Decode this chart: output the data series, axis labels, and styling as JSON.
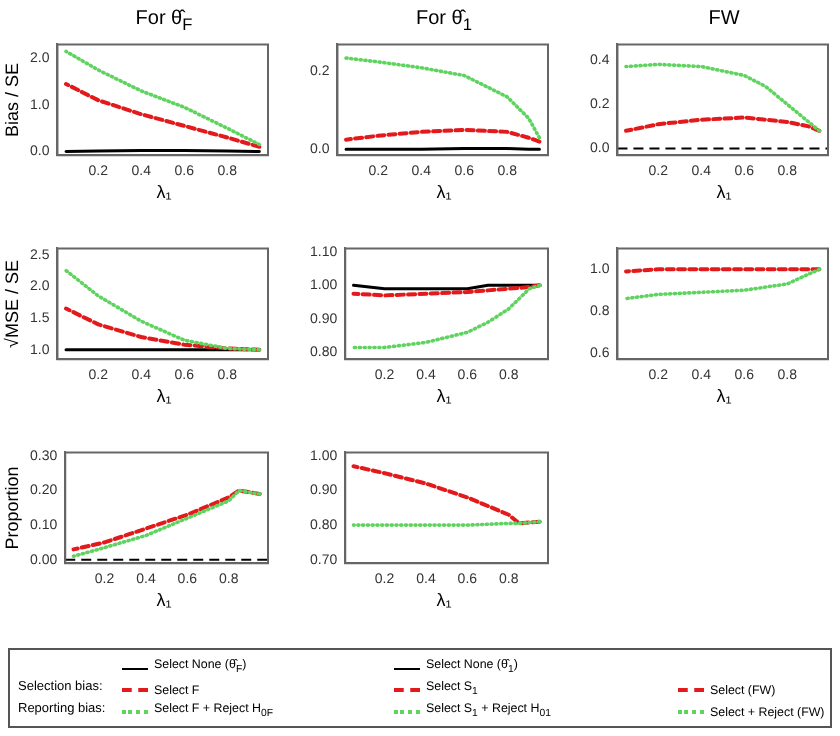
{
  "chart_data": [
    {
      "type": "line",
      "title": "For θ̂$_{F}$",
      "xlabel": "λ₁",
      "ylabel": "Bias / SE",
      "x": [
        0.05,
        0.2,
        0.4,
        0.6,
        0.8,
        0.95
      ],
      "xlim": [
        0.01,
        0.99
      ],
      "xticks": [
        0.2,
        0.4,
        0.6,
        0.8
      ],
      "ylim": [
        -0.08,
        2.3
      ],
      "yticks": [
        {
          "value": 0,
          "label": "0.0"
        },
        {
          "value": 1,
          "label": "1.0"
        },
        {
          "value": 2,
          "label": "2.0"
        }
      ],
      "legend": "bottom",
      "annotations": [
        "Selection bias:",
        "Reporting bias:"
      ],
      "series": [
        {
          "name": "Select None (θ̂$_{F}$)",
          "color": "#000000",
          "line_style": "solid",
          "values": [
            0.0,
            0.01,
            0.02,
            0.02,
            0.01,
            0.0
          ]
        },
        {
          "name": "Select F",
          "color": "#e31a1c",
          "line_style": "dashed",
          "values": [
            1.45,
            1.1,
            0.8,
            0.55,
            0.3,
            0.1
          ]
        },
        {
          "name": "Select F + Reject H$_{0F}$",
          "color": "#5fd35f",
          "line_style": "dotted",
          "values": [
            2.15,
            1.75,
            1.3,
            0.95,
            0.5,
            0.15
          ]
        }
      ]
    },
    {
      "type": "line",
      "title": "For θ̂$_{1}$",
      "xlabel": "λ₁",
      "x": [
        0.05,
        0.2,
        0.4,
        0.6,
        0.8,
        0.9,
        0.95
      ],
      "xlim": [
        0.01,
        0.99
      ],
      "xticks": [
        0.2,
        0.4,
        0.6,
        0.8
      ],
      "ylim": [
        -0.015,
        0.27
      ],
      "yticks": [
        {
          "value": 0,
          "label": "0.0"
        },
        {
          "value": 0.2,
          "label": "0.2"
        }
      ],
      "legend": "bottom",
      "series": [
        {
          "name": "Select None (θ̂$_{1}$)",
          "color": "#000000",
          "line_style": "solid",
          "values": [
            0.0,
            0.0,
            0.0,
            0.002,
            0.002,
            0.0,
            0.0
          ]
        },
        {
          "name": "Select S$_{1}$",
          "color": "#e31a1c",
          "line_style": "dashed",
          "values": [
            0.025,
            0.035,
            0.045,
            0.05,
            0.045,
            0.03,
            0.02
          ]
        },
        {
          "name": "Select S$_{1}$ + Reject H$_{01}$",
          "color": "#5fd35f",
          "line_style": "dotted",
          "values": [
            0.235,
            0.225,
            0.21,
            0.19,
            0.135,
            0.08,
            0.03
          ]
        }
      ]
    },
    {
      "type": "line",
      "title": "FW",
      "xlabel": "λ₁",
      "x": [
        0.05,
        0.2,
        0.4,
        0.6,
        0.7,
        0.8,
        0.9,
        0.95
      ],
      "xlim": [
        0.01,
        0.99
      ],
      "xticks": [
        0.2,
        0.4,
        0.6,
        0.8
      ],
      "ylim": [
        -0.03,
        0.47
      ],
      "yticks": [
        {
          "value": 0,
          "label": "0.0"
        },
        {
          "value": 0.2,
          "label": "0.2"
        },
        {
          "value": 0.4,
          "label": "0.4"
        }
      ],
      "legend": "bottom",
      "ref_lines": [
        {
          "axis": "y",
          "value": 0,
          "color": "#000000",
          "line_style": "dashed"
        }
      ],
      "series": [
        {
          "name": "Select (FW)",
          "color": "#e31a1c",
          "line_style": "dashed",
          "values": [
            0.08,
            0.11,
            0.13,
            0.14,
            0.13,
            0.12,
            0.1,
            0.08
          ]
        },
        {
          "name": "Select + Reject (FW)",
          "color": "#5fd35f",
          "line_style": "dotted",
          "values": [
            0.37,
            0.38,
            0.37,
            0.33,
            0.28,
            0.2,
            0.12,
            0.08
          ]
        }
      ]
    },
    {
      "type": "line",
      "xlabel": "λ₁",
      "ylabel": "√MSE / SE",
      "x": [
        0.05,
        0.2,
        0.4,
        0.6,
        0.8,
        0.95
      ],
      "xlim": [
        0.01,
        0.99
      ],
      "xticks": [
        0.2,
        0.4,
        0.6,
        0.8
      ],
      "ylim": [
        0.85,
        2.6
      ],
      "yticks": [
        {
          "value": 1,
          "label": "1.0"
        },
        {
          "value": 1.5,
          "label": "1.5"
        },
        {
          "value": 2,
          "label": "2.0"
        },
        {
          "value": 2.5,
          "label": "2.5"
        }
      ],
      "series": [
        {
          "color": "#000000",
          "line_style": "solid",
          "values": [
            1.0,
            1.0,
            1.0,
            1.0,
            1.0,
            1.0
          ]
        },
        {
          "color": "#e31a1c",
          "line_style": "dashed",
          "values": [
            1.65,
            1.4,
            1.2,
            1.08,
            1.02,
            1.0
          ]
        },
        {
          "color": "#5fd35f",
          "line_style": "dotted",
          "values": [
            2.25,
            1.85,
            1.45,
            1.15,
            1.02,
            1.0
          ]
        }
      ]
    },
    {
      "type": "line",
      "xlabel": "λ₁",
      "x": [
        0.05,
        0.2,
        0.4,
        0.6,
        0.7,
        0.8,
        0.9,
        0.95
      ],
      "xlim": [
        0.01,
        0.99
      ],
      "xticks": [
        0.2,
        0.4,
        0.6,
        0.8
      ],
      "ylim": [
        0.78,
        1.11
      ],
      "yticks": [
        {
          "value": 0.8,
          "label": "0.80"
        },
        {
          "value": 0.9,
          "label": "0.90"
        },
        {
          "value": 1,
          "label": "1.00"
        },
        {
          "value": 1.1,
          "label": "1.10"
        }
      ],
      "series": [
        {
          "color": "#000000",
          "line_style": "solid",
          "values": [
            1.0,
            0.99,
            0.99,
            0.99,
            1.0,
            1.0,
            1.0,
            1.0
          ]
        },
        {
          "color": "#e31a1c",
          "line_style": "dashed",
          "values": [
            0.975,
            0.97,
            0.975,
            0.98,
            0.985,
            0.99,
            0.995,
            1.0
          ]
        },
        {
          "color": "#5fd35f",
          "line_style": "dotted",
          "values": [
            0.815,
            0.815,
            0.83,
            0.86,
            0.89,
            0.93,
            0.99,
            1.0
          ]
        }
      ]
    },
    {
      "type": "line",
      "xlabel": "λ₁",
      "x": [
        0.05,
        0.2,
        0.4,
        0.6,
        0.8,
        0.95
      ],
      "xlim": [
        0.01,
        0.99
      ],
      "xticks": [
        0.2,
        0.4,
        0.6,
        0.8
      ],
      "ylim": [
        0.57,
        1.1
      ],
      "yticks": [
        {
          "value": 0.6,
          "label": "0.6"
        },
        {
          "value": 0.8,
          "label": "0.8"
        },
        {
          "value": 1,
          "label": "1.0"
        }
      ],
      "series": [
        {
          "color": "#e31a1c",
          "line_style": "dashed",
          "values": [
            0.99,
            1.0,
            1.0,
            1.0,
            1.0,
            1.0
          ]
        },
        {
          "color": "#5fd35f",
          "line_style": "dotted",
          "values": [
            0.86,
            0.88,
            0.89,
            0.9,
            0.93,
            1.0
          ]
        }
      ]
    },
    {
      "type": "line",
      "xlabel": "λ₁",
      "ylabel": "Proportion",
      "x": [
        0.05,
        0.2,
        0.4,
        0.6,
        0.8,
        0.85,
        0.95
      ],
      "xlim": [
        0.01,
        0.99
      ],
      "xticks": [
        0.2,
        0.4,
        0.6,
        0.8
      ],
      "ylim": [
        -0.01,
        0.31
      ],
      "yticks": [
        {
          "value": 0,
          "label": "0.00"
        },
        {
          "value": 0.1,
          "label": "0.10"
        },
        {
          "value": 0.2,
          "label": "0.20"
        },
        {
          "value": 0.3,
          "label": "0.30"
        }
      ],
      "ref_lines": [
        {
          "axis": "y",
          "value": 0,
          "color": "#000000",
          "line_style": "dashed"
        }
      ],
      "series": [
        {
          "color": "#e31a1c",
          "line_style": "dashed",
          "values": [
            0.03,
            0.05,
            0.09,
            0.13,
            0.18,
            0.2,
            0.19
          ]
        },
        {
          "color": "#5fd35f",
          "line_style": "dotted",
          "values": [
            0.01,
            0.035,
            0.07,
            0.12,
            0.17,
            0.2,
            0.19
          ]
        }
      ]
    },
    {
      "type": "line",
      "xlabel": "λ₁",
      "x": [
        0.05,
        0.2,
        0.4,
        0.6,
        0.8,
        0.85,
        0.95
      ],
      "xlim": [
        0.01,
        0.99
      ],
      "xticks": [
        0.2,
        0.4,
        0.6,
        0.8
      ],
      "ylim": [
        0.69,
        1.01
      ],
      "yticks": [
        {
          "value": 0.7,
          "label": "0.70"
        },
        {
          "value": 0.8,
          "label": "0.80"
        },
        {
          "value": 0.9,
          "label": "0.90"
        },
        {
          "value": 1,
          "label": "1.00"
        }
      ],
      "series": [
        {
          "color": "#e31a1c",
          "line_style": "dashed",
          "values": [
            0.97,
            0.95,
            0.92,
            0.88,
            0.83,
            0.805,
            0.81
          ]
        },
        {
          "color": "#5fd35f",
          "line_style": "dotted",
          "values": [
            0.8,
            0.8,
            0.8,
            0.8,
            0.805,
            0.805,
            0.81
          ]
        }
      ]
    }
  ]
}
